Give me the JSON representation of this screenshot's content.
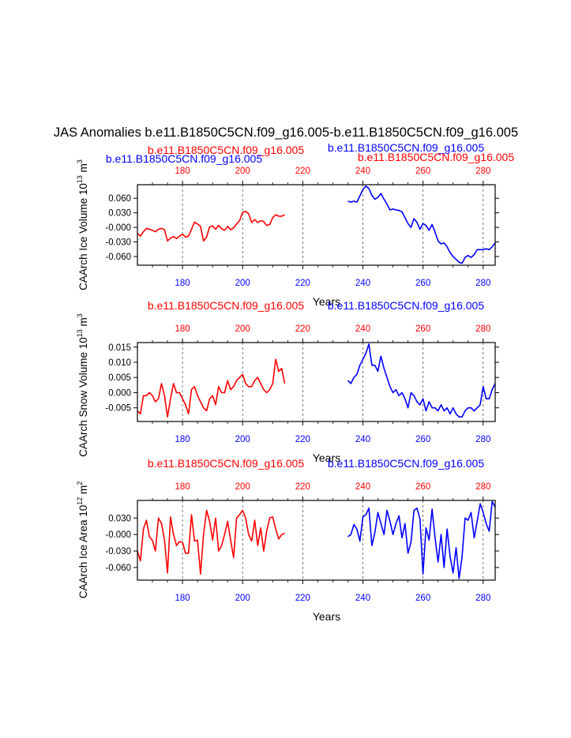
{
  "title": "JAS Anomalies b.e11.B1850C5CN.f09_g16.005-b.e11.B1850C5CN.f09_g16.005",
  "colors": {
    "case1": "#ff0000",
    "case2": "#0000ff",
    "axis": "#000000"
  },
  "chart_data": [
    {
      "type": "line",
      "panel": "ice-volume",
      "ylabel": "CAArch Ice Volume 10^13 m^3",
      "ylabel_main": "CAArch Ice Volume 10",
      "ylabel_exp": "13",
      "ylabel_unit": "m",
      "ylabel_unit_exp": "3",
      "xlabel": "Years",
      "xlim": [
        165,
        284
      ],
      "ylim": [
        -0.078,
        0.088
      ],
      "yticks": [
        0.06,
        0.03,
        0.0,
        -0.03,
        -0.06
      ],
      "ytick_labels": [
        "0.060",
        "0.030",
        "-0.000",
        "-0.030",
        "-0.060"
      ],
      "xticks": [
        180,
        200,
        220,
        240,
        260,
        280
      ],
      "xtick_labels_bottom": [
        "180",
        "200",
        "220",
        "240",
        "260",
        "280"
      ],
      "xtick_labels_top": [
        "180",
        "200",
        "220",
        "240",
        "260",
        "280"
      ],
      "top_label_case1": "b.e11.B1850C5CN.f09_g16.005",
      "top_label_case2": "b.e11.B1850C5CN.f09_g16.005",
      "series": [
        {
          "name": "b.e11.B1850C5CN.f09_g16.005",
          "color": "#ff0000",
          "x": [
            165,
            166,
            167,
            168,
            169,
            170,
            171,
            172,
            173,
            174,
            175,
            176,
            177,
            178,
            179,
            180,
            181,
            182,
            183,
            184,
            185,
            186,
            187,
            188,
            189,
            190,
            191,
            192,
            193,
            194,
            195,
            196,
            197,
            198,
            199,
            200,
            201,
            202,
            203,
            204,
            205,
            206,
            207,
            208,
            209,
            210,
            211,
            212,
            213,
            214
          ],
          "y": [
            -0.012,
            -0.018,
            -0.009,
            -0.002,
            -0.004,
            -0.006,
            -0.009,
            -0.004,
            -0.002,
            -0.005,
            -0.028,
            -0.022,
            -0.019,
            -0.023,
            -0.018,
            -0.014,
            -0.02,
            -0.018,
            -0.004,
            0.011,
            0.007,
            0.002,
            -0.028,
            -0.02,
            0.001,
            0.003,
            -0.004,
            0.004,
            -0.003,
            -0.006,
            0.002,
            -0.005,
            -0.001,
            0.007,
            0.014,
            0.031,
            0.033,
            0.028,
            0.01,
            0.016,
            0.01,
            0.014,
            0.012,
            0.004,
            0.006,
            0.02,
            0.026,
            0.023,
            0.023,
            0.026
          ]
        },
        {
          "name": "b.e11.B1850C5CN.f09_g16.005",
          "color": "#0000ff",
          "x": [
            235,
            236,
            237,
            238,
            239,
            240,
            241,
            242,
            243,
            244,
            245,
            246,
            247,
            248,
            249,
            250,
            251,
            252,
            253,
            254,
            255,
            256,
            257,
            258,
            259,
            260,
            261,
            262,
            263,
            264,
            265,
            266,
            267,
            268,
            269,
            270,
            271,
            272,
            273,
            274,
            275,
            276,
            277,
            278,
            279,
            280,
            281,
            282,
            283,
            284
          ],
          "y": [
            0.054,
            0.052,
            0.054,
            0.052,
            0.065,
            0.078,
            0.085,
            0.08,
            0.066,
            0.058,
            0.062,
            0.07,
            0.058,
            0.048,
            0.036,
            0.038,
            0.036,
            0.035,
            0.032,
            0.02,
            0.008,
            0.0,
            0.018,
            0.01,
            -0.004,
            0.008,
            0.004,
            -0.006,
            0.006,
            -0.01,
            -0.028,
            -0.034,
            -0.032,
            -0.04,
            -0.052,
            -0.06,
            -0.066,
            -0.072,
            -0.074,
            -0.062,
            -0.058,
            -0.062,
            -0.056,
            -0.046,
            -0.046,
            -0.046,
            -0.044,
            -0.046,
            -0.04,
            -0.032
          ]
        }
      ]
    },
    {
      "type": "line",
      "panel": "snow-volume",
      "ylabel": "CAArch Snow Volume 10^13 m^3",
      "ylabel_main": "CAArch Snow Volume 10",
      "ylabel_exp": "13",
      "ylabel_unit": "m",
      "ylabel_unit_exp": "3",
      "xlabel": "Years",
      "xlim": [
        165,
        284
      ],
      "ylim": [
        -0.0095,
        0.0165
      ],
      "yticks": [
        0.015,
        0.01,
        0.005,
        0.0,
        -0.005
      ],
      "ytick_labels": [
        "0.015",
        "0.010",
        "0.005",
        "0.000",
        "-0.005"
      ],
      "xticks": [
        180,
        200,
        220,
        240,
        260,
        280
      ],
      "xtick_labels_bottom": [
        "180",
        "200",
        "220",
        "240",
        "260",
        "280"
      ],
      "xtick_labels_top": [
        "180",
        "200",
        "220",
        "240",
        "260",
        "280"
      ],
      "top_label_case1": "b.e11.B1850C5CN.f09_g16.005",
      "top_label_case2": "b.e11.B1850C5CN.f09_g16.005",
      "series": [
        {
          "name": "b.e11.B1850C5CN.f09_g16.005",
          "color": "#ff0000",
          "x": [
            165,
            166,
            167,
            168,
            169,
            170,
            171,
            172,
            173,
            174,
            175,
            176,
            177,
            178,
            179,
            180,
            181,
            182,
            183,
            184,
            185,
            186,
            187,
            188,
            189,
            190,
            191,
            192,
            193,
            194,
            195,
            196,
            197,
            198,
            199,
            200,
            201,
            202,
            203,
            204,
            205,
            206,
            207,
            208,
            209,
            210,
            211,
            212,
            213,
            214
          ],
          "y": [
            -0.006,
            -0.007,
            -0.001,
            -0.001,
            0.0,
            -0.001,
            -0.003,
            -0.002,
            0.003,
            -0.001,
            -0.008,
            -0.002,
            0.003,
            0.0,
            0.0,
            -0.002,
            -0.004,
            -0.007,
            0.001,
            0.002,
            -0.001,
            -0.003,
            -0.005,
            -0.006,
            -0.002,
            -0.001,
            -0.004,
            0.002,
            0.0,
            0.0,
            0.004,
            0.001,
            0.002,
            0.004,
            0.005,
            0.006,
            0.003,
            0.002,
            0.002,
            0.004,
            0.005,
            0.003,
            0.001,
            0.0,
            0.001,
            0.003,
            0.011,
            0.007,
            0.008,
            0.003
          ]
        },
        {
          "name": "b.e11.B1850C5CN.f09_g16.005",
          "color": "#0000ff",
          "x": [
            235,
            236,
            237,
            238,
            239,
            240,
            241,
            242,
            243,
            244,
            245,
            246,
            247,
            248,
            249,
            250,
            251,
            252,
            253,
            254,
            255,
            256,
            257,
            258,
            259,
            260,
            261,
            262,
            263,
            264,
            265,
            266,
            267,
            268,
            269,
            270,
            271,
            272,
            273,
            274,
            275,
            276,
            277,
            278,
            279,
            280,
            281,
            282,
            283,
            284
          ],
          "y": [
            0.004,
            0.003,
            0.005,
            0.006,
            0.009,
            0.011,
            0.013,
            0.016,
            0.009,
            0.009,
            0.007,
            0.012,
            0.008,
            0.005,
            0.002,
            0.0,
            0.001,
            -0.001,
            0.0,
            -0.002,
            -0.005,
            0.0,
            -0.001,
            -0.003,
            -0.004,
            -0.002,
            -0.006,
            -0.003,
            -0.005,
            -0.005,
            -0.006,
            -0.004,
            -0.006,
            -0.005,
            -0.007,
            -0.005,
            -0.007,
            -0.008,
            -0.008,
            -0.006,
            -0.005,
            -0.005,
            -0.006,
            -0.005,
            -0.004,
            0.002,
            -0.002,
            -0.002,
            0.001,
            0.003
          ]
        }
      ]
    },
    {
      "type": "line",
      "panel": "ice-area",
      "ylabel": "CAArch Ice Area 10^12 m^2",
      "ylabel_main": "CAArch Ice Area 10",
      "ylabel_exp": "12",
      "ylabel_unit": "m",
      "ylabel_unit_exp": "2",
      "xlabel": "Years",
      "xlim": [
        165,
        284
      ],
      "ylim": [
        -0.083,
        0.062
      ],
      "yticks": [
        0.03,
        0.0,
        -0.03,
        -0.06
      ],
      "ytick_labels": [
        "0.030",
        "-0.000",
        "-0.030",
        "-0.060"
      ],
      "xticks": [
        180,
        200,
        220,
        240,
        260,
        280
      ],
      "xtick_labels_bottom": [
        "180",
        "200",
        "220",
        "240",
        "260",
        "280"
      ],
      "xtick_labels_top": [
        "180",
        "200",
        "220",
        "240",
        "260",
        "280"
      ],
      "top_label_case1": "b.e11.B1850C5CN.f09_g16.005",
      "top_label_case2": "b.e11.B1850C5CN.f09_g16.005",
      "series": [
        {
          "name": "b.e11.B1850C5CN.f09_g16.005",
          "color": "#ff0000",
          "x": [
            165,
            166,
            167,
            168,
            169,
            170,
            171,
            172,
            173,
            174,
            175,
            176,
            177,
            178,
            179,
            180,
            181,
            182,
            183,
            184,
            185,
            186,
            187,
            188,
            189,
            190,
            191,
            192,
            193,
            194,
            195,
            196,
            197,
            198,
            199,
            200,
            201,
            202,
            203,
            204,
            205,
            206,
            207,
            208,
            209,
            210,
            211,
            212,
            213,
            214
          ],
          "y": [
            -0.03,
            -0.048,
            0.01,
            0.026,
            -0.004,
            -0.011,
            -0.03,
            0.03,
            0.02,
            -0.01,
            -0.07,
            0.032,
            0.0,
            -0.02,
            -0.013,
            -0.014,
            -0.034,
            -0.034,
            0.036,
            -0.012,
            -0.01,
            -0.072,
            0.0,
            0.044,
            0.024,
            -0.01,
            0.03,
            -0.03,
            -0.02,
            0.0,
            0.024,
            -0.01,
            -0.042,
            0.03,
            0.036,
            0.044,
            0.03,
            0.0,
            -0.012,
            0.026,
            -0.02,
            0.012,
            -0.03,
            0.006,
            0.03,
            0.032,
            0.01,
            -0.008,
            0.0,
            0.002
          ]
        },
        {
          "name": "b.e11.B1850C5CN.f09_g16.005",
          "color": "#0000ff",
          "x": [
            235,
            236,
            237,
            238,
            239,
            240,
            241,
            242,
            243,
            244,
            245,
            246,
            247,
            248,
            249,
            250,
            251,
            252,
            253,
            254,
            255,
            256,
            257,
            258,
            259,
            260,
            261,
            262,
            263,
            264,
            265,
            266,
            267,
            268,
            269,
            270,
            271,
            272,
            273,
            274,
            275,
            276,
            277,
            278,
            279,
            280,
            281,
            282,
            283,
            284
          ],
          "y": [
            -0.004,
            0.0,
            0.018,
            0.01,
            -0.012,
            0.032,
            0.036,
            0.048,
            -0.02,
            0.004,
            0.04,
            0.02,
            0.0,
            0.044,
            0.024,
            0.0,
            0.02,
            0.034,
            -0.006,
            0.02,
            -0.034,
            -0.014,
            0.044,
            0.048,
            0.028,
            -0.072,
            0.012,
            -0.01,
            0.046,
            -0.006,
            -0.05,
            0.0,
            -0.06,
            0.01,
            -0.04,
            -0.07,
            -0.024,
            -0.08,
            -0.04,
            0.03,
            0.026,
            0.04,
            -0.006,
            0.024,
            0.056,
            0.04,
            0.02,
            0.006,
            0.06,
            0.05
          ]
        }
      ]
    }
  ]
}
